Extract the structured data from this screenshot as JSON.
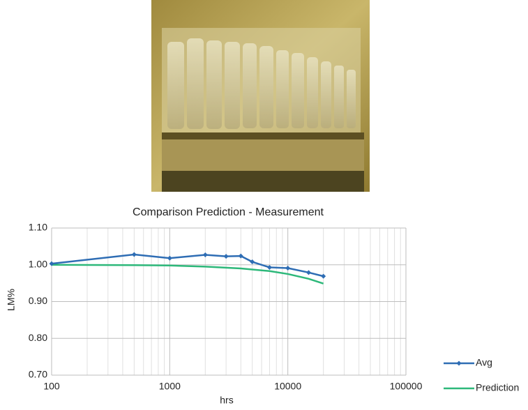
{
  "chart_data": {
    "type": "line",
    "title": "Comparison Prediction - Measurement",
    "x_label": "hrs",
    "y_label": "LM%",
    "log_x": true,
    "grid": true,
    "x_minor_grid": true,
    "xlim": [
      100,
      100000
    ],
    "xticks": [
      100,
      1000,
      10000,
      100000
    ],
    "ylim": [
      0.7,
      1.1
    ],
    "yticks": [
      {
        "value": 0.7,
        "label": "0.70"
      },
      {
        "value": 0.8,
        "label": "0.80"
      },
      {
        "value": 0.9,
        "label": "0.90"
      },
      {
        "value": 1.0,
        "label": "1.00"
      },
      {
        "value": 1.1,
        "label": "1.10"
      }
    ],
    "series": [
      {
        "name": "Avg",
        "color": "#2e6db4",
        "marker": "diamond",
        "x": [
          100,
          500,
          1000,
          2000,
          3000,
          4000,
          5000,
          7000,
          10000,
          15000,
          20000
        ],
        "values": [
          1.003,
          1.028,
          1.018,
          1.027,
          1.023,
          1.024,
          1.008,
          0.993,
          0.991,
          0.979,
          0.969
        ]
      },
      {
        "name": "Prediction",
        "color": "#2db87a",
        "x": [
          100,
          500,
          1000,
          2000,
          4000,
          7000,
          10000,
          15000,
          20000
        ],
        "values": [
          1.0,
          0.999,
          0.998,
          0.995,
          0.99,
          0.983,
          0.975,
          0.962,
          0.949
        ]
      }
    ]
  }
}
